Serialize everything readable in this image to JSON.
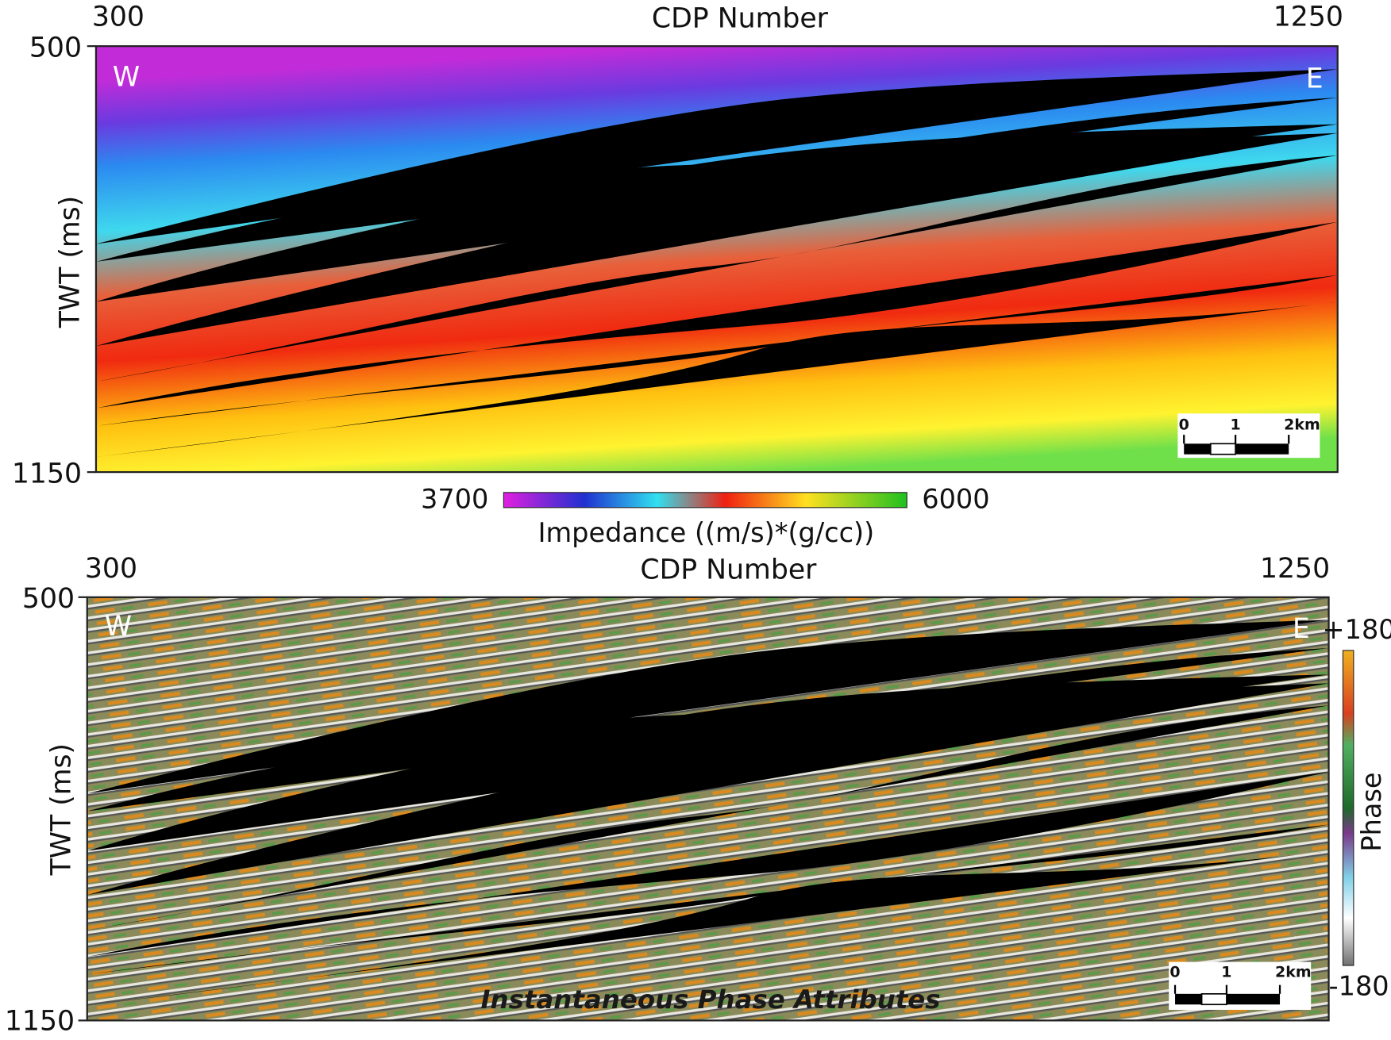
{
  "panels": [
    {
      "x_axis_label": "CDP Number",
      "x_start": "300",
      "x_end": "1250",
      "y_axis_label": "TWT (ms)",
      "y_top": "500",
      "y_bottom": "1150",
      "west": "W",
      "east": "E",
      "scale_bar": [
        "0",
        "1",
        "2km"
      ]
    },
    {
      "x_axis_label": "CDP Number",
      "x_start": "300",
      "x_end": "1250",
      "y_axis_label": "TWT (ms)",
      "y_top": "500",
      "y_bottom": "1150",
      "west": "W",
      "east": "E",
      "scale_bar": [
        "0",
        "1",
        "2km"
      ]
    }
  ],
  "impedance_colorbar": {
    "min": "3700",
    "max": "6000",
    "label": "Impedance ((m/s)*(g/cc))"
  },
  "phase_colorbar": {
    "top": "+180",
    "bottom": "-180",
    "label": "Phase"
  },
  "caption": "Instantaneous Phase Attributes"
}
